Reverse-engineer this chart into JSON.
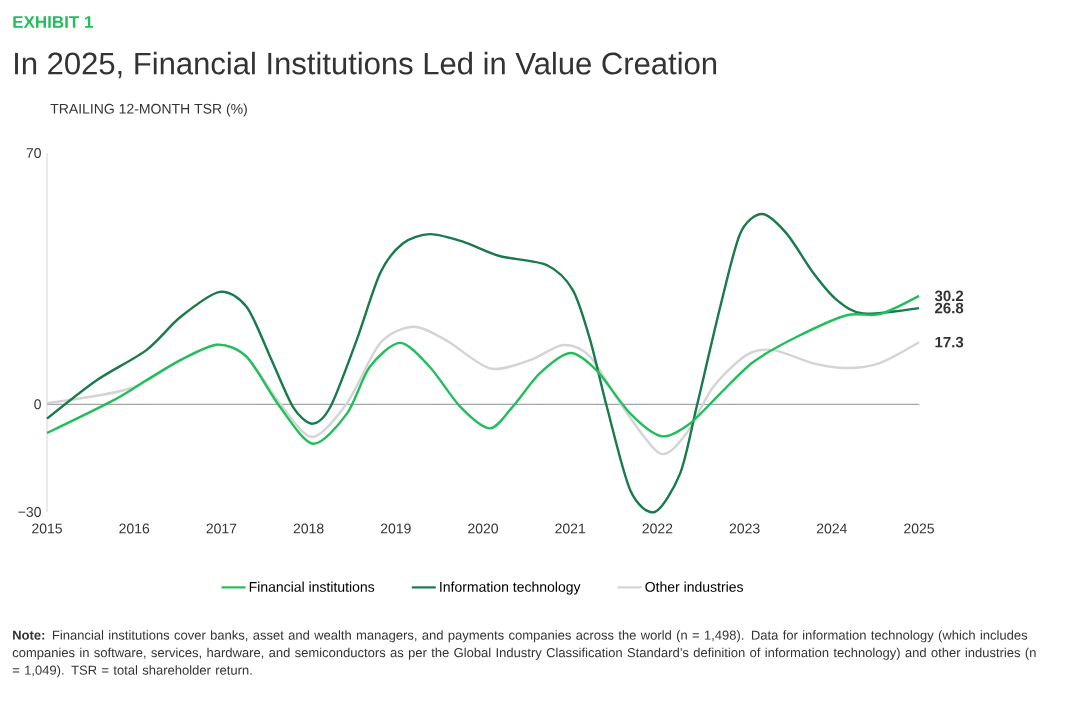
{
  "chart_data": {
    "type": "line",
    "subtitle": "EXHIBIT 1",
    "title": "In 2025, Financial Institutions Led in Value Creation",
    "ylabel": "TRAILING 12-MONTH TSR (%)",
    "xlim": [
      2015,
      2025
    ],
    "xticks": [
      2015,
      2016,
      2017,
      2018,
      2019,
      2020,
      2021,
      2022,
      2023,
      2024,
      2025
    ],
    "ylim": [
      -30,
      70
    ],
    "yticks": [
      {
        "value": -30,
        "label": "−30"
      },
      0,
      70
    ],
    "legend": "bottom",
    "marker": "none",
    "line_style": "solid",
    "ref_lines": [
      {
        "axis": "y",
        "value": 0,
        "color": "#a6a6a6"
      }
    ],
    "series": [
      {
        "name": "Financial institutions",
        "color": "#21bf5b",
        "x": [
          2015,
          2015.76,
          2016.14,
          2016.53,
          2016.95,
          2017.29,
          2017.67,
          2018.05,
          2018.44,
          2018.7,
          2019.05,
          2019.39,
          2019.74,
          2020.08,
          2020.34,
          2020.65,
          2021.0,
          2021.3,
          2021.69,
          2022.05,
          2022.37,
          2022.72,
          2023.1,
          2023.6,
          2024.17,
          2024.55,
          2025
        ],
        "values": [
          -8,
          1.1,
          6.7,
          12.3,
          16.6,
          13.2,
          -0.7,
          -11,
          -2.6,
          10.4,
          17.1,
          10.4,
          -0.7,
          -6.7,
          -0.7,
          8.6,
          14.3,
          9.5,
          -2.6,
          -8.9,
          -5.4,
          3,
          11.8,
          18.8,
          24.8,
          25.1,
          30.2
        ],
        "value_labels": [
          null,
          null,
          null,
          null,
          null,
          null,
          null,
          null,
          null,
          null,
          null,
          null,
          null,
          null,
          null,
          null,
          null,
          null,
          null,
          null,
          null,
          null,
          null,
          null,
          null,
          null,
          "30.2"
        ]
      },
      {
        "name": "Information technology",
        "color": "#197a4b",
        "x": [
          2015,
          2015.57,
          2016.14,
          2016.53,
          2016.98,
          2017.29,
          2017.56,
          2017.82,
          2018.04,
          2018.25,
          2018.55,
          2018.82,
          2019.08,
          2019.39,
          2019.77,
          2020.19,
          2020.73,
          2021.03,
          2021.23,
          2021.42,
          2021.69,
          2021.97,
          2022.26,
          2022.45,
          2022.72,
          2022.95,
          2023.2,
          2023.48,
          2023.79,
          2024.06,
          2024.36,
          2025
        ],
        "values": [
          -4,
          6.7,
          15.1,
          24.3,
          31.3,
          27.1,
          13.2,
          -0.7,
          -5.4,
          -0.7,
          17.8,
          36.5,
          44.8,
          47.4,
          45.3,
          41.3,
          38.8,
          31.8,
          17.8,
          -0.7,
          -24,
          -30,
          -19.3,
          -0.7,
          27.1,
          47.6,
          53,
          47.6,
          36.5,
          29,
          25.3,
          26.8
        ],
        "value_labels": [
          null,
          null,
          null,
          null,
          null,
          null,
          null,
          null,
          null,
          null,
          null,
          null,
          null,
          null,
          null,
          null,
          null,
          null,
          null,
          null,
          null,
          null,
          null,
          null,
          null,
          null,
          null,
          null,
          null,
          null,
          null,
          "26.8"
        ]
      },
      {
        "name": "Other industries",
        "color": "#d4d4d4",
        "x": [
          2015,
          2015.95,
          2016.53,
          2016.95,
          2017.29,
          2017.67,
          2018.04,
          2018.44,
          2018.82,
          2019.2,
          2019.58,
          2020.08,
          2020.54,
          2020.92,
          2021.23,
          2021.6,
          2022.03,
          2022.33,
          2022.64,
          2023.02,
          2023.33,
          2023.79,
          2024.17,
          2024.55,
          2025
        ],
        "values": [
          0.3,
          4.4,
          12.3,
          16.6,
          13.2,
          0.3,
          -9.1,
          0.3,
          17,
          21.6,
          17.8,
          10,
          12.3,
          16.5,
          13.2,
          -0.7,
          -13.7,
          -8.2,
          4.8,
          13.7,
          15.1,
          11.4,
          10.1,
          11.5,
          17.3
        ],
        "value_labels": [
          null,
          null,
          null,
          null,
          null,
          null,
          null,
          null,
          null,
          null,
          null,
          null,
          null,
          null,
          null,
          null,
          null,
          null,
          null,
          null,
          null,
          null,
          null,
          null,
          "17.3"
        ]
      }
    ],
    "annotations": [
      "**Note:** Financial institutions cover banks, asset and wealth managers, and payments companies across the world (n = 1,498). Data for information technology (which includes companies in software, services, hardware, and semiconductors as per the Global Industry Classification Standard’s definition of information technology) and other industries (n = 1,049). TSR = total shareholder return."
    ]
  }
}
